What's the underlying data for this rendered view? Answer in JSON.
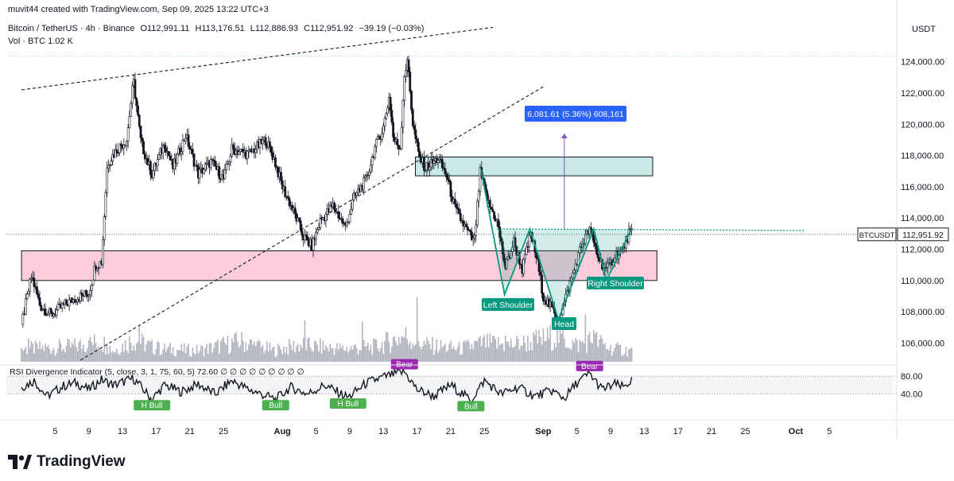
{
  "watermark": "muvit44 created with TradingView.com, Sep 09, 2025 13:22 UTC+3",
  "symbol": {
    "name": "Bitcoin / TetherUS · 4h · Binance",
    "open": "O112,991.11",
    "high": "H113,176.51",
    "low": "L112,886.93",
    "close": "C112,951.92",
    "change": "−39.19 (−0.03%)",
    "volume": "Vol · BTC  1.02 K"
  },
  "currency": "USDT",
  "brand": "TradingView",
  "colors": {
    "candle": "#131722",
    "volume": "#b2b5be",
    "resistance_zone": "#b2dfdb",
    "support_zone": "#f8bbd0",
    "pattern": "#089981",
    "measure": "#2962ff",
    "bear": "#9c27b0",
    "bull": "#4caf50"
  },
  "annotations": {
    "measure_label": "6,081.61 (5.36%) 608,161",
    "left_shoulder": "Left Shoulder",
    "head": "Head",
    "right_shoulder": "Right Shoulder",
    "ticker_tag": "BTCUSDT",
    "last_price": "112,951.92"
  },
  "rsi": {
    "title": "RSI Divergence Indicator (5, close, 3, 1, 75, 60, 5)  72.60  ∅  ∅  ∅  ∅  ∅  ∅  ∅  ∅  ∅",
    "ticks": [
      "80.00",
      "40.00"
    ],
    "labels": [
      {
        "text": "H Bull",
        "day": 15.5,
        "value": 30,
        "kind": "bull"
      },
      {
        "text": "Bull",
        "day": 30.2,
        "value": 30,
        "kind": "bull"
      },
      {
        "text": "H Bull",
        "day": 38.8,
        "value": 34,
        "kind": "bull"
      },
      {
        "text": "Bull",
        "day": 53.4,
        "value": 28,
        "kind": "bull"
      },
      {
        "text": "Bear",
        "day": 45.5,
        "value": 90,
        "kind": "bear"
      },
      {
        "text": "Bear",
        "day": 67.5,
        "value": 86,
        "kind": "bear"
      }
    ]
  },
  "chart_data": {
    "type": "candlestick",
    "title": "Bitcoin / TetherUS · 4h · Binance",
    "ylim": [
      104800,
      125000
    ],
    "y_ticks": [
      "124,000.00",
      "122,000.00",
      "120,000.00",
      "118,000.00",
      "116,000.00",
      "114,000.00",
      "112,000.00",
      "110,000.00",
      "108,000.00",
      "106,000.00"
    ],
    "x_tick_labels": [
      "5",
      "9",
      "13",
      "17",
      "21",
      "25",
      "Aug",
      "5",
      "9",
      "13",
      "17",
      "21",
      "25",
      "Sep",
      "5",
      "9",
      "13",
      "17",
      "21",
      "25",
      "Oct",
      "5"
    ],
    "x_tick_days": [
      4,
      8,
      12,
      16,
      20,
      24,
      31,
      35,
      39,
      43,
      47,
      51,
      55,
      62,
      66,
      70,
      74,
      78,
      82,
      86,
      92,
      96
    ],
    "x_axis_note": "days counted from Jul 1, 2025",
    "price_path": [
      [
        0.0,
        107200
      ],
      [
        1.2,
        110300
      ],
      [
        2.2,
        108400
      ],
      [
        3.5,
        107800
      ],
      [
        5.0,
        108400
      ],
      [
        6.5,
        108900
      ],
      [
        8.0,
        109200
      ],
      [
        8.8,
        111000
      ],
      [
        9.5,
        111200
      ],
      [
        10.2,
        117500
      ],
      [
        11.5,
        118500
      ],
      [
        12.5,
        119000
      ],
      [
        13.3,
        122800
      ],
      [
        14.2,
        118800
      ],
      [
        15.5,
        116800
      ],
      [
        17.0,
        118800
      ],
      [
        18.0,
        117200
      ],
      [
        19.5,
        119300
      ],
      [
        21.0,
        116800
      ],
      [
        22.5,
        117600
      ],
      [
        24.0,
        116500
      ],
      [
        25.0,
        118400
      ],
      [
        27.0,
        118100
      ],
      [
        29.0,
        119000
      ],
      [
        30.0,
        117800
      ],
      [
        31.0,
        116000
      ],
      [
        32.5,
        114200
      ],
      [
        33.5,
        112800
      ],
      [
        34.5,
        112200
      ],
      [
        35.5,
        113800
      ],
      [
        37.0,
        114800
      ],
      [
        38.5,
        113400
      ],
      [
        39.5,
        115300
      ],
      [
        41.0,
        116500
      ],
      [
        42.0,
        118500
      ],
      [
        43.0,
        119800
      ],
      [
        43.7,
        121800
      ],
      [
        44.2,
        119000
      ],
      [
        45.0,
        118500
      ],
      [
        45.5,
        123200
      ],
      [
        45.9,
        124000
      ],
      [
        46.5,
        120000
      ],
      [
        47.2,
        118000
      ],
      [
        48.0,
        117200
      ],
      [
        49.5,
        117800
      ],
      [
        50.5,
        116700
      ],
      [
        51.5,
        114600
      ],
      [
        52.5,
        113600
      ],
      [
        53.8,
        112400
      ],
      [
        54.5,
        116900
      ],
      [
        55.5,
        114900
      ],
      [
        56.5,
        113800
      ],
      [
        57.5,
        110800
      ],
      [
        58.5,
        112500
      ],
      [
        59.5,
        110700
      ],
      [
        60.5,
        113000
      ],
      [
        61.3,
        111200
      ],
      [
        62.0,
        109000
      ],
      [
        63.0,
        108200
      ],
      [
        63.8,
        107400
      ],
      [
        64.5,
        108600
      ],
      [
        65.5,
        110400
      ],
      [
        66.5,
        112200
      ],
      [
        67.5,
        113300
      ],
      [
        68.5,
        111500
      ],
      [
        69.5,
        110600
      ],
      [
        70.5,
        111600
      ],
      [
        71.5,
        112000
      ],
      [
        72.2,
        113100
      ],
      [
        72.6,
        112950
      ]
    ],
    "volume_path": [
      [
        0,
        0.35
      ],
      [
        6,
        0.4
      ],
      [
        9.5,
        0.55
      ],
      [
        11,
        0.3
      ],
      [
        13.3,
        0.6
      ],
      [
        16,
        0.35
      ],
      [
        21,
        0.3
      ],
      [
        26,
        0.55
      ],
      [
        30,
        0.3
      ],
      [
        33,
        0.45
      ],
      [
        38,
        0.35
      ],
      [
        42,
        0.4
      ],
      [
        45.5,
        0.7
      ],
      [
        48,
        0.45
      ],
      [
        52,
        0.35
      ],
      [
        55,
        0.5
      ],
      [
        58,
        0.45
      ],
      [
        61,
        0.55
      ],
      [
        63.5,
        0.7
      ],
      [
        66,
        0.45
      ],
      [
        68,
        0.6
      ],
      [
        70,
        0.35
      ],
      [
        72.6,
        0.3
      ]
    ],
    "rsi_path": [
      [
        0,
        55
      ],
      [
        1.5,
        70
      ],
      [
        3,
        35
      ],
      [
        5,
        58
      ],
      [
        6.5,
        65
      ],
      [
        8,
        50
      ],
      [
        9.5,
        72
      ],
      [
        11,
        60
      ],
      [
        13.3,
        75
      ],
      [
        15.5,
        28
      ],
      [
        17,
        60
      ],
      [
        19,
        45
      ],
      [
        21,
        62
      ],
      [
        23,
        40
      ],
      [
        25,
        70
      ],
      [
        27,
        50
      ],
      [
        30.2,
        28
      ],
      [
        32,
        55
      ],
      [
        34,
        40
      ],
      [
        36,
        60
      ],
      [
        38.8,
        32
      ],
      [
        41,
        65
      ],
      [
        43,
        78
      ],
      [
        45.5,
        90
      ],
      [
        47,
        50
      ],
      [
        49,
        35
      ],
      [
        51,
        60
      ],
      [
        53.4,
        26
      ],
      [
        55,
        70
      ],
      [
        57,
        40
      ],
      [
        59,
        55
      ],
      [
        61,
        35
      ],
      [
        63,
        48
      ],
      [
        64.5,
        30
      ],
      [
        66,
        65
      ],
      [
        67.5,
        86
      ],
      [
        69,
        50
      ],
      [
        70.5,
        62
      ],
      [
        71.5,
        55
      ],
      [
        72.6,
        72.6
      ]
    ],
    "resistance_zone": {
      "day_start": 46.8,
      "day_end": 75.0,
      "low": 116700,
      "high": 117900
    },
    "support_zone": {
      "day_start": 0,
      "day_end": 75.5,
      "low": 110000,
      "high": 111900
    },
    "neckline": {
      "day_start": 56.5,
      "day_end": 93.0,
      "price": 113300
    },
    "head_and_shoulders": [
      [
        54.6,
        117100
      ],
      [
        57.4,
        109100
      ],
      [
        60.4,
        113300
      ],
      [
        63.8,
        107500
      ],
      [
        68.0,
        113300
      ],
      [
        69.5,
        110000
      ],
      [
        72.4,
        113200
      ]
    ],
    "measure": {
      "day": 64.5,
      "from": 113300,
      "to": 119400
    },
    "trend_line_lower": [
      [
        7.0,
        104900
      ],
      [
        62.0,
        122400
      ]
    ],
    "trend_line_upper": [
      [
        0.0,
        122200
      ],
      [
        56.0,
        126200
      ]
    ],
    "last_price": 112951.92
  }
}
